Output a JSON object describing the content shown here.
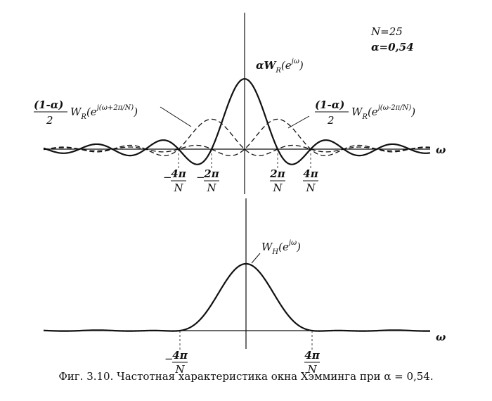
{
  "top": {
    "params": [
      "N=25",
      "α=0,54"
    ],
    "main_label": {
      "lead": "αW",
      "sub": "R",
      "open": "(e",
      "sup": "jω",
      "close": ")"
    },
    "left_label": {
      "num": "(1-α)",
      "den": "2",
      "lead": "W",
      "sub": "R",
      "open": "(e",
      "sup": "j(ω+2π/N)",
      "close": ")"
    },
    "right_label": {
      "num": "(1-α)",
      "den": "2",
      "lead": "W",
      "sub": "R",
      "open": "(e",
      "sup": "j(ω-2π/N)",
      "close": ")"
    },
    "axis_label": "ω",
    "ticks": [
      {
        "sign": "−",
        "num": "4π",
        "den": "N"
      },
      {
        "sign": "−",
        "num": "2π",
        "den": "N"
      },
      {
        "num": "2π",
        "den": "N"
      },
      {
        "num": "4π",
        "den": "N"
      }
    ]
  },
  "bottom": {
    "curve_label": {
      "lead": "W",
      "sub": "H",
      "open": "(e",
      "sup": "jω",
      "close": ")"
    },
    "axis_label": "ω",
    "ticks": [
      {
        "sign": "−",
        "num": "4π",
        "den": "N"
      },
      {
        "num": "4π",
        "den": "N"
      }
    ]
  },
  "caption": "Фиг. 3.10. Частотная характеристика окна Хэмминга при α = 0,54."
}
